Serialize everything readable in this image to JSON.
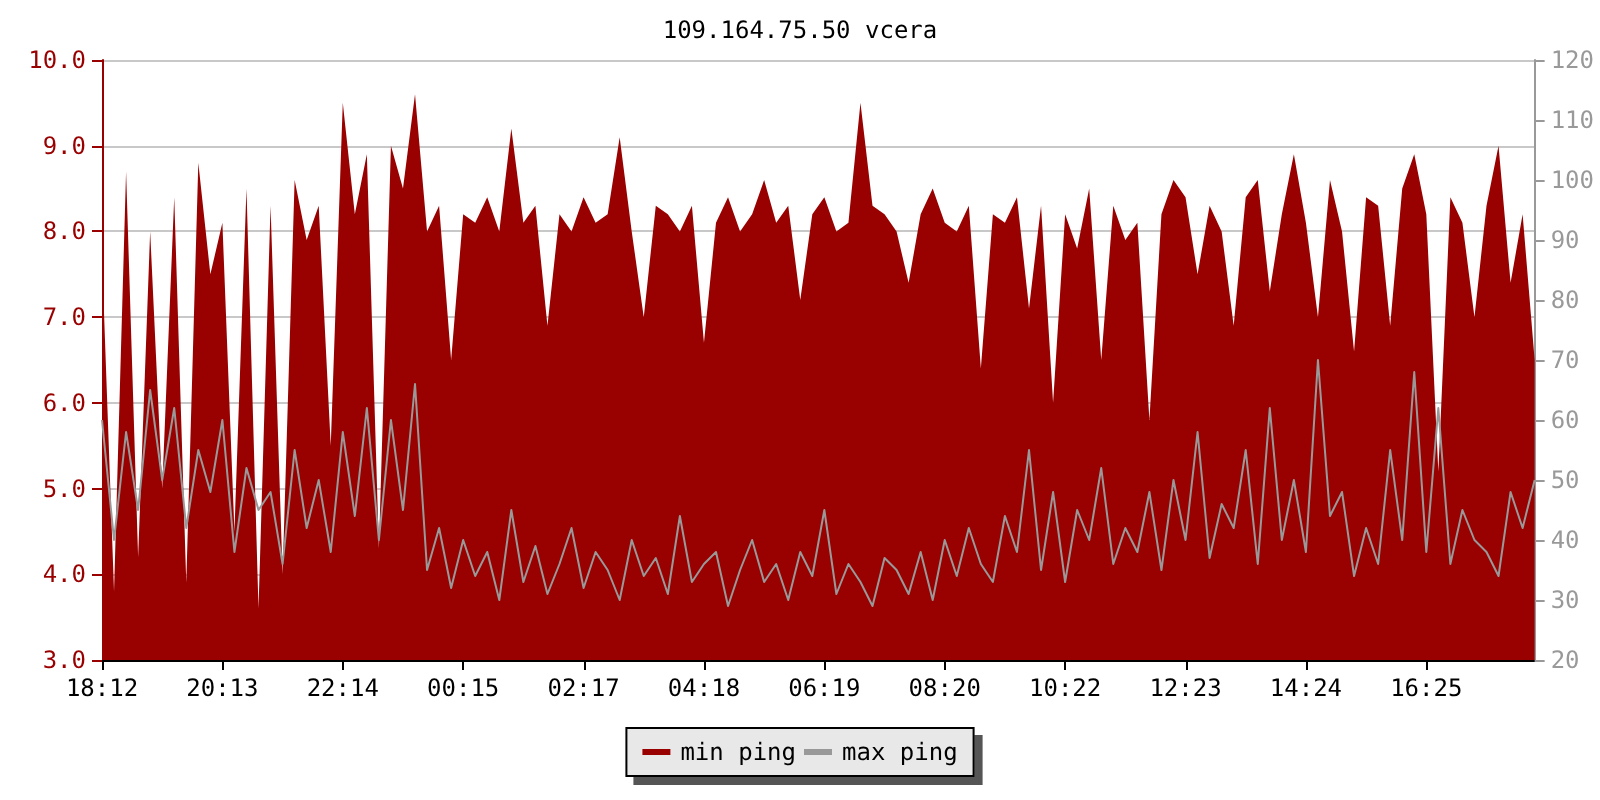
{
  "chart_data": {
    "type": "area",
    "title": "109.164.75.50 vcera",
    "categories": [
      "18:12",
      null,
      null,
      null,
      null,
      null,
      null,
      null,
      null,
      null,
      "20:13",
      null,
      null,
      null,
      null,
      null,
      null,
      null,
      null,
      null,
      "22:14",
      null,
      null,
      null,
      null,
      null,
      null,
      null,
      null,
      null,
      "00:15",
      null,
      null,
      null,
      null,
      null,
      null,
      null,
      null,
      null,
      "02:17",
      null,
      null,
      null,
      null,
      null,
      null,
      null,
      null,
      null,
      "04:18",
      null,
      null,
      null,
      null,
      null,
      null,
      null,
      null,
      null,
      "06:19",
      null,
      null,
      null,
      null,
      null,
      null,
      null,
      null,
      null,
      "08:20",
      null,
      null,
      null,
      null,
      null,
      null,
      null,
      null,
      null,
      "10:22",
      null,
      null,
      null,
      null,
      null,
      null,
      null,
      null,
      null,
      "12:23",
      null,
      null,
      null,
      null,
      null,
      null,
      null,
      null,
      null,
      "14:24",
      null,
      null,
      null,
      null,
      null,
      null,
      null,
      null,
      null,
      "16:25",
      null,
      null,
      null,
      null,
      null,
      null,
      null,
      null,
      null
    ],
    "ylim": [
      3.0,
      10.0
    ],
    "yticks": [
      {
        "value": 3,
        "label": "3.0"
      },
      {
        "value": 4,
        "label": "4.0"
      },
      {
        "value": 5,
        "label": "5.0"
      },
      {
        "value": 6,
        "label": "6.0"
      },
      {
        "value": 7,
        "label": "7.0"
      },
      {
        "value": 8,
        "label": "8.0"
      },
      {
        "value": 9,
        "label": "9.0"
      },
      {
        "value": 10,
        "label": "10.0"
      }
    ],
    "y2lim": [
      20,
      120
    ],
    "y2ticks": [
      20,
      30,
      40,
      50,
      60,
      70,
      80,
      90,
      100,
      110,
      120
    ],
    "grid": "y",
    "legend": "bottom",
    "series": [
      {
        "name": "min ping",
        "color": "#990000",
        "values": [
          7.7,
          3.8,
          8.7,
          4.2,
          8.0,
          5.0,
          8.4,
          3.9,
          8.8,
          7.5,
          8.1,
          4.5,
          8.5,
          3.6,
          8.3,
          4.0,
          8.6,
          7.9,
          8.3,
          5.5,
          9.5,
          8.2,
          8.9,
          4.3,
          9.0,
          8.5,
          9.6,
          8.0,
          8.3,
          6.5,
          8.2,
          8.1,
          8.4,
          8.0,
          9.2,
          8.1,
          8.3,
          6.9,
          8.2,
          8.0,
          8.4,
          8.1,
          8.2,
          9.1,
          8.0,
          7.0,
          8.3,
          8.2,
          8.0,
          8.3,
          6.7,
          8.1,
          8.4,
          8.0,
          8.2,
          8.6,
          8.1,
          8.3,
          7.2,
          8.2,
          8.4,
          8.0,
          8.1,
          9.5,
          8.3,
          8.2,
          8.0,
          7.4,
          8.2,
          8.5,
          8.1,
          8.0,
          8.3,
          6.4,
          8.2,
          8.1,
          8.4,
          7.1,
          8.3,
          6.0,
          8.2,
          7.8,
          8.5,
          6.5,
          8.3,
          7.9,
          8.1,
          5.8,
          8.2,
          8.6,
          8.4,
          7.5,
          8.3,
          8.0,
          6.9,
          8.4,
          8.6,
          7.3,
          8.2,
          8.9,
          8.1,
          7.0,
          8.6,
          8.0,
          6.6,
          8.4,
          8.3,
          6.9,
          8.5,
          8.9,
          8.2,
          5.2,
          8.4,
          8.1,
          7.0,
          8.3,
          9.0,
          7.4,
          8.2,
          6.5
        ]
      },
      {
        "name": "max ping",
        "type": "line",
        "axis": "y2",
        "color": "#999999",
        "values": [
          60,
          40,
          58,
          45,
          65,
          50,
          62,
          42,
          55,
          48,
          60,
          38,
          52,
          45,
          48,
          36,
          55,
          42,
          50,
          38,
          58,
          44,
          62,
          40,
          60,
          45,
          66,
          35,
          42,
          32,
          40,
          34,
          38,
          30,
          45,
          33,
          39,
          31,
          36,
          42,
          32,
          38,
          35,
          30,
          40,
          34,
          37,
          31,
          44,
          33,
          36,
          38,
          29,
          35,
          40,
          33,
          36,
          30,
          38,
          34,
          45,
          31,
          36,
          33,
          29,
          37,
          35,
          31,
          38,
          30,
          40,
          34,
          42,
          36,
          33,
          44,
          38,
          55,
          35,
          48,
          33,
          45,
          40,
          52,
          36,
          42,
          38,
          48,
          35,
          50,
          40,
          58,
          37,
          46,
          42,
          55,
          36,
          62,
          40,
          50,
          38,
          70,
          44,
          48,
          34,
          42,
          36,
          55,
          40,
          68,
          38,
          62,
          36,
          45,
          40,
          38,
          34,
          48,
          42,
          50
        ]
      }
    ]
  }
}
